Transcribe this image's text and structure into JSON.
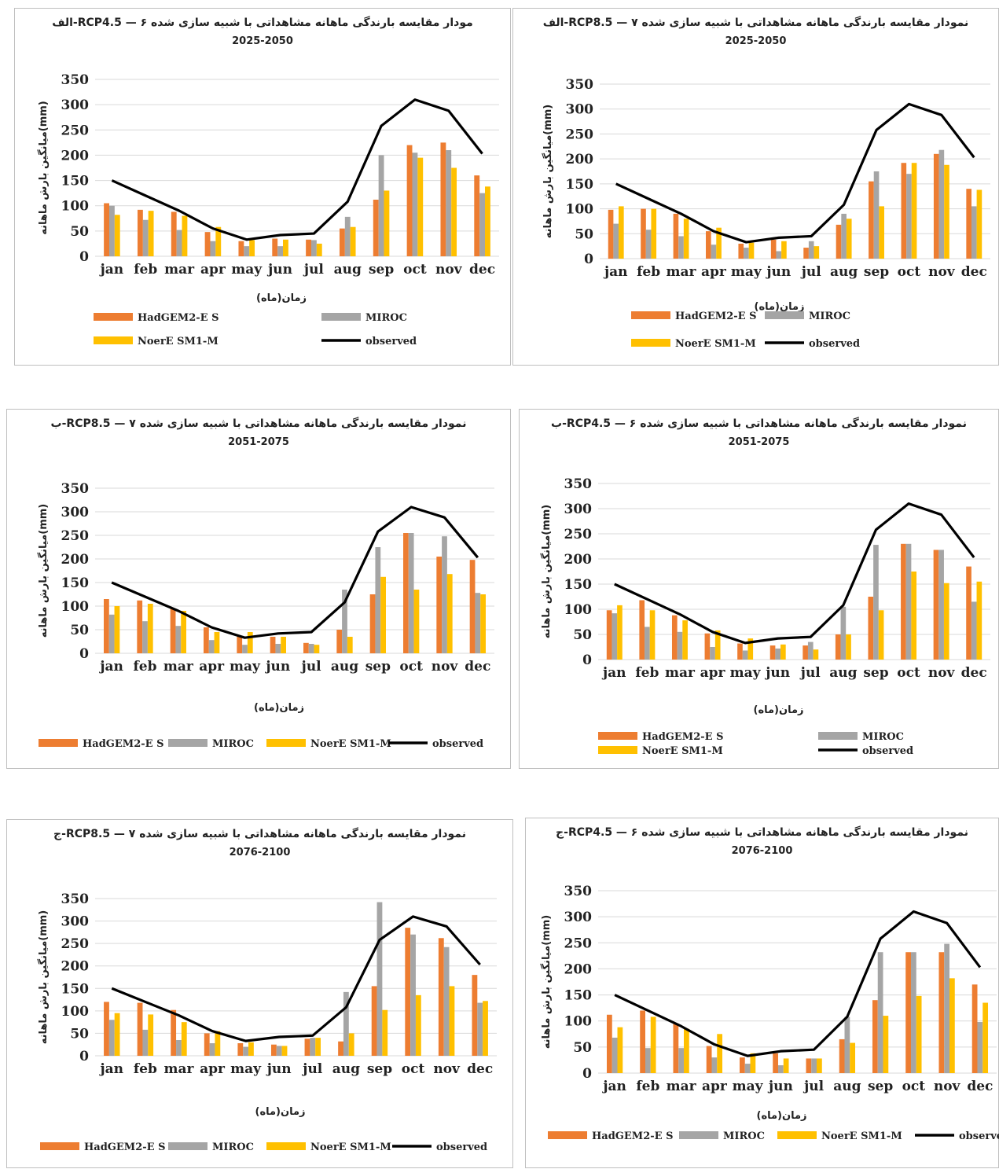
{
  "colors": {
    "had": "#ED7D31",
    "miroc": "#A5A5A5",
    "noer": "#FFC000",
    "obs": "#000000",
    "grid": "#D9D9D9"
  },
  "legend_labels": [
    "HadGEM2-E S",
    "MIROC",
    "NoerE SM1-M",
    "observed"
  ],
  "chart_data": [
    {
      "id": "p1",
      "type": "bar+line",
      "title": "مودار مقایسه بارندگی ماهانه مشاهداتی با شبیه سازی شده RCP4.5 — ۶-الف",
      "subtitle": "2025-2050",
      "ylabel": "میانگین بارش ماهانه(mm)",
      "xlabel": "زمان(ماه)",
      "ylim": [
        0,
        350
      ],
      "yticks": [
        0,
        50,
        100,
        150,
        200,
        250,
        300,
        350
      ],
      "categories": [
        "jan",
        "feb",
        "mar",
        "apr",
        "may",
        "jun",
        "jul",
        "aug",
        "sep",
        "oct",
        "nov",
        "dec"
      ],
      "series": [
        {
          "name": "HadGEM2-E S",
          "values": [
            105,
            92,
            88,
            48,
            30,
            35,
            33,
            55,
            112,
            220,
            225,
            160
          ]
        },
        {
          "name": "MIROC",
          "values": [
            100,
            72,
            52,
            30,
            20,
            20,
            32,
            78,
            200,
            205,
            210,
            125
          ]
        },
        {
          "name": "NoerE SM1-M",
          "values": [
            82,
            90,
            80,
            58,
            32,
            33,
            25,
            58,
            130,
            195,
            175,
            138
          ]
        },
        {
          "name": "observed",
          "values": [
            150,
            120,
            90,
            55,
            33,
            42,
            45,
            108,
            258,
            310,
            288,
            203
          ]
        }
      ]
    },
    {
      "id": "p2",
      "type": "bar+line",
      "title": "نمودار مقایسه بارندگی ماهانه مشاهداتی با شبیه سازی شده RCP8.5 — ۷-الف",
      "subtitle": "2025-2050",
      "ylabel": "میانگین بارش ماهانه(mm)",
      "xlabel": "زمان(ماه)",
      "ylim": [
        0,
        350
      ],
      "yticks": [
        0,
        50,
        100,
        150,
        200,
        250,
        300,
        350
      ],
      "categories": [
        "jan",
        "feb",
        "mar",
        "apr",
        "may",
        "jun",
        "jul",
        "aug",
        "sep",
        "oct",
        "nov",
        "dec"
      ],
      "series": [
        {
          "name": "HadGEM2-E S",
          "values": [
            98,
            100,
            90,
            55,
            30,
            38,
            22,
            68,
            155,
            192,
            210,
            140
          ]
        },
        {
          "name": "MIROC",
          "values": [
            70,
            58,
            45,
            28,
            22,
            15,
            35,
            90,
            175,
            170,
            218,
            105
          ]
        },
        {
          "name": "NoerE SM1-M",
          "values": [
            105,
            100,
            80,
            62,
            32,
            35,
            25,
            80,
            105,
            192,
            188,
            138
          ]
        },
        {
          "name": "observed",
          "values": [
            150,
            120,
            90,
            55,
            33,
            42,
            45,
            108,
            258,
            310,
            288,
            203
          ]
        }
      ]
    },
    {
      "id": "p3",
      "type": "bar+line",
      "title": "نمودار مقایسه بارندگی ماهانه مشاهداتی با شبیه سازی شده RCP8.5 — ۷-ب",
      "subtitle": "2051-2075",
      "ylabel": "میانگین بارش ماهانه(mm)",
      "xlabel": "زمان(ماه)",
      "ylim": [
        0,
        350
      ],
      "yticks": [
        0,
        50,
        100,
        150,
        200,
        250,
        300,
        350
      ],
      "categories": [
        "jan",
        "feb",
        "mar",
        "apr",
        "may",
        "jun",
        "jul",
        "aug",
        "sep",
        "oct",
        "nov",
        "dec"
      ],
      "series": [
        {
          "name": "HadGEM2-E S",
          "values": [
            115,
            112,
            95,
            55,
            35,
            35,
            22,
            50,
            125,
            255,
            205,
            198
          ]
        },
        {
          "name": "MIROC",
          "values": [
            82,
            68,
            58,
            28,
            18,
            20,
            20,
            135,
            225,
            255,
            248,
            128
          ]
        },
        {
          "name": "NoerE SM1-M",
          "values": [
            100,
            105,
            90,
            45,
            45,
            35,
            18,
            35,
            162,
            135,
            168,
            125
          ]
        },
        {
          "name": "observed",
          "values": [
            150,
            120,
            90,
            55,
            33,
            42,
            45,
            108,
            258,
            310,
            288,
            203
          ]
        }
      ]
    },
    {
      "id": "p4",
      "type": "bar+line",
      "title": "نمودار مقایسه بارندگی ماهانه مشاهداتی با شبیه سازی شده RCP4.5 — ۶-ب",
      "subtitle": "2051-2075",
      "ylabel": "میانگین بارش ماهانه(mm)",
      "xlabel": "زمان(ماه)",
      "ylim": [
        0,
        350
      ],
      "yticks": [
        0,
        50,
        100,
        150,
        200,
        250,
        300,
        350
      ],
      "categories": [
        "jan",
        "feb",
        "mar",
        "apr",
        "may",
        "jun",
        "jul",
        "aug",
        "sep",
        "oct",
        "nov",
        "dec"
      ],
      "series": [
        {
          "name": "HadGEM2-E S",
          "values": [
            98,
            118,
            88,
            52,
            32,
            28,
            28,
            50,
            125,
            230,
            218,
            185
          ]
        },
        {
          "name": "MIROC",
          "values": [
            92,
            65,
            55,
            25,
            18,
            22,
            35,
            105,
            228,
            230,
            218,
            115
          ]
        },
        {
          "name": "NoerE SM1-M",
          "values": [
            108,
            98,
            78,
            58,
            42,
            30,
            20,
            50,
            98,
            175,
            152,
            155
          ]
        },
        {
          "name": "observed",
          "values": [
            150,
            120,
            90,
            55,
            33,
            42,
            45,
            108,
            258,
            310,
            288,
            203
          ]
        }
      ]
    },
    {
      "id": "p5",
      "type": "bar+line",
      "title": "نمودار مقایسه بارندگی ماهانه مشاهداتی با شبیه سازی شده RCP8.5 — ۷-ج",
      "subtitle": "2076-2100",
      "ylabel": "میانگین بارش ماهانه(mm)",
      "xlabel": "زمان(ماه)",
      "ylim": [
        0,
        350
      ],
      "yticks": [
        0,
        50,
        100,
        150,
        200,
        250,
        300,
        350
      ],
      "categories": [
        "jan",
        "feb",
        "mar",
        "apr",
        "may",
        "jun",
        "jul",
        "aug",
        "sep",
        "oct",
        "nov",
        "dec"
      ],
      "series": [
        {
          "name": "HadGEM2-E S",
          "values": [
            120,
            118,
            102,
            50,
            28,
            25,
            38,
            32,
            155,
            285,
            262,
            180
          ]
        },
        {
          "name": "MIROC",
          "values": [
            80,
            58,
            35,
            28,
            20,
            22,
            40,
            142,
            342,
            270,
            242,
            118
          ]
        },
        {
          "name": "NoerE SM1-M",
          "values": [
            95,
            92,
            75,
            55,
            30,
            22,
            40,
            50,
            102,
            135,
            155,
            122
          ]
        },
        {
          "name": "observed",
          "values": [
            150,
            120,
            90,
            55,
            33,
            42,
            45,
            108,
            258,
            310,
            288,
            203
          ]
        }
      ]
    },
    {
      "id": "p6",
      "type": "bar+line",
      "title": "نمودار مقایسه بارندگی ماهانه مشاهداتی با شبیه سازی شده RCP4.5 — ۶-ج",
      "subtitle": "2076-2100",
      "ylabel": "میانگین بارش ماهانه(mm)",
      "xlabel": "زمان(ماه)",
      "ylim": [
        0,
        350
      ],
      "yticks": [
        0,
        50,
        100,
        150,
        200,
        250,
        300,
        350
      ],
      "categories": [
        "jan",
        "feb",
        "mar",
        "apr",
        "may",
        "jun",
        "jul",
        "aug",
        "sep",
        "oct",
        "nov",
        "dec"
      ],
      "series": [
        {
          "name": "HadGEM2-E S",
          "values": [
            112,
            120,
            95,
            52,
            30,
            38,
            28,
            65,
            140,
            232,
            232,
            170
          ]
        },
        {
          "name": "MIROC",
          "values": [
            68,
            48,
            48,
            30,
            18,
            15,
            28,
            108,
            232,
            232,
            248,
            98
          ]
        },
        {
          "name": "NoerE SM1-M",
          "values": [
            88,
            108,
            85,
            75,
            38,
            28,
            28,
            58,
            110,
            148,
            182,
            135
          ]
        },
        {
          "name": "observed",
          "values": [
            150,
            120,
            90,
            55,
            33,
            42,
            45,
            108,
            258,
            310,
            288,
            203
          ]
        }
      ]
    }
  ]
}
